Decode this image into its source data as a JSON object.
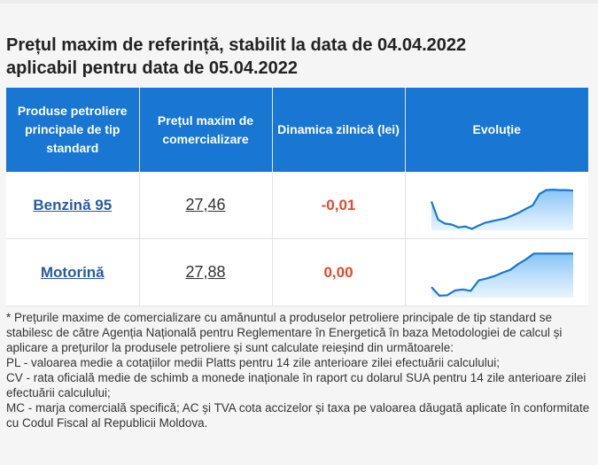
{
  "title_line1": "Prețul maxim de referință, stabilit la data de 04.04.2022",
  "title_line2": "aplicabil pentru data de 05.04.2022",
  "table": {
    "headers": [
      "Produse petroliere principale de tip standard",
      "Prețul maxim de comercializare",
      "Dinamica zilnică (lei)",
      "Evoluție"
    ],
    "rows": [
      {
        "product": "Benzină 95",
        "price": "27,46",
        "change": "-0,01",
        "trend": [
          0.6,
          0.22,
          0.14,
          0.12,
          0.06,
          0.08,
          0.03,
          0.1,
          0.16,
          0.19,
          0.22,
          0.25,
          0.31,
          0.37,
          0.45,
          0.52,
          0.76,
          0.84,
          0.85,
          0.84,
          0.84,
          0.83
        ]
      },
      {
        "product": "Motorină",
        "price": "27,88",
        "change": "0,00",
        "trend": [
          0.22,
          0.04,
          0.05,
          0.15,
          0.17,
          0.14,
          0.36,
          0.4,
          0.45,
          0.52,
          0.58,
          0.7,
          0.8,
          0.92,
          0.92,
          0.92,
          0.92,
          0.92,
          0.92
        ]
      }
    ],
    "accent_color": "#1976d2",
    "negative_color": "#e04a2f"
  },
  "notes": [
    "* Prețurile maxime de comercializare cu amănuntul a produselor petroliere principale de tip standard se stabilesc de către Agenția Națională pentru Reglementare în Energetică în baza Metodologiei de calcul și aplicare a prețurilor la produsele petroliere și sunt calculate reieșind din următoarele:",
    "PL - valoarea medie a cotațiilor medii Platts pentru 14 zile anterioare zilei efectuării calculului;",
    "CV - rata oficială medie de schimb a monede inaționale în raport cu dolarul SUA pentru 14 zile anterioare zilei efectuării calculului;",
    "MC - marja comercială specifică; AC și TVA cota accizelor și taxa pe valoarea dăugată aplicate în conformitate cu Codul Fiscal al Republicii Moldova."
  ]
}
